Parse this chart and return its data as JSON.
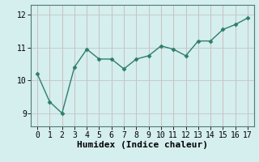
{
  "x": [
    0,
    1,
    2,
    3,
    4,
    5,
    6,
    7,
    8,
    9,
    10,
    11,
    12,
    13,
    14,
    15,
    16,
    17
  ],
  "y": [
    10.2,
    9.35,
    9.0,
    10.4,
    10.95,
    10.65,
    10.65,
    10.35,
    10.65,
    10.75,
    11.05,
    10.95,
    10.75,
    11.2,
    11.2,
    11.55,
    11.7,
    11.9
  ],
  "line_color": "#2e7d6e",
  "marker": "D",
  "marker_size": 2.5,
  "linewidth": 1.0,
  "xlabel": "Humidex (Indice chaleur)",
  "xlabel_fontsize": 8,
  "xlabel_fontweight": "bold",
  "bg_color": "#d5eeee",
  "grid_color_v": "#c8b8b8",
  "grid_color_h": "#c0c8c8",
  "ylim": [
    8.6,
    12.3
  ],
  "xlim": [
    -0.5,
    17.5
  ],
  "yticks": [
    9,
    10,
    11,
    12
  ],
  "xticks": [
    0,
    1,
    2,
    3,
    4,
    5,
    6,
    7,
    8,
    9,
    10,
    11,
    12,
    13,
    14,
    15,
    16,
    17
  ],
  "tick_fontsize": 7,
  "font_family": "monospace"
}
